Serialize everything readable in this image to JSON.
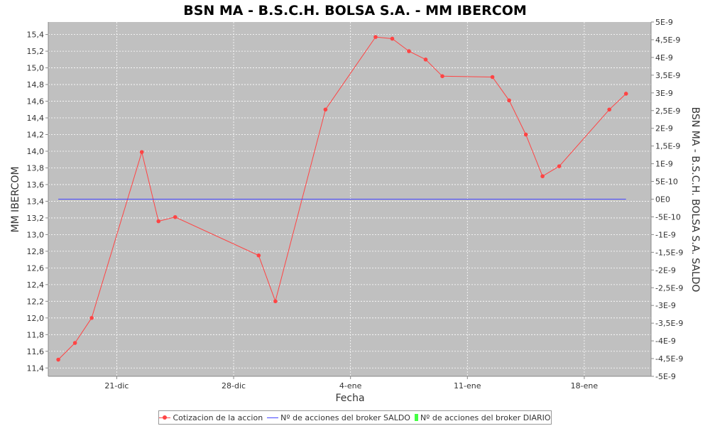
{
  "chart_data": {
    "type": "line",
    "title": "BSN MA - B.S.C.H. BOLSA S.A. - MM IBERCOM",
    "xlabel": "Fecha",
    "ylabel": "MM IBERCOM",
    "y2label": "BSN MA - B.S.C.H. BOLSA S.A. SALDO",
    "x_tick_labels": [
      "21-dic",
      "28-dic",
      "4-ene",
      "11-ene",
      "18-ene"
    ],
    "x_tick_days": [
      21,
      28,
      35,
      42,
      49
    ],
    "xlim_days": [
      16.9,
      53.0
    ],
    "ylim": [
      11.3,
      15.55
    ],
    "y_ticks": [
      "11,4",
      "11,6",
      "11,8",
      "12,0",
      "12,2",
      "12,4",
      "12,6",
      "12,8",
      "13,0",
      "13,2",
      "13,4",
      "13,6",
      "13,8",
      "14,0",
      "14,2",
      "14,4",
      "14,6",
      "14,8",
      "15,0",
      "15,2",
      "15,4"
    ],
    "y_tick_values": [
      11.4,
      11.6,
      11.8,
      12.0,
      12.2,
      12.4,
      12.6,
      12.8,
      13.0,
      13.2,
      13.4,
      13.6,
      13.8,
      14.0,
      14.2,
      14.4,
      14.6,
      14.8,
      15.0,
      15.2,
      15.4
    ],
    "y2lim": [
      -5e-09,
      5e-09
    ],
    "y2_ticks": [
      "5E-9",
      "4,5E-9",
      "4E-9",
      "3,5E-9",
      "3E-9",
      "2,5E-9",
      "2E-9",
      "1,5E-9",
      "1E-9",
      "5E-10",
      "0E0",
      "-5E-10",
      "-1E-9",
      "-1,5E-9",
      "-2E-9",
      "-2,5E-9",
      "-3E-9",
      "-3,5E-9",
      "-4E-9",
      "-4,5E-9",
      "-5E-9"
    ],
    "y2_tick_values": [
      5e-09,
      4.5e-09,
      4e-09,
      3.5e-09,
      3e-09,
      2.5e-09,
      2e-09,
      1.5e-09,
      1e-09,
      5e-10,
      0,
      -5e-10,
      -1e-09,
      -1.5e-09,
      -2e-09,
      -2.5e-09,
      -3e-09,
      -3.5e-09,
      -4e-09,
      -4.5e-09,
      -5e-09
    ],
    "grid": true,
    "legend_position": "bottom",
    "series": [
      {
        "name": "Cotizacion de la accion",
        "axis": "left",
        "color": "#ff4444",
        "x_days": [
          17.5,
          18.5,
          19.5,
          22.5,
          23.5,
          24.5,
          29.5,
          30.5,
          33.5,
          36.5,
          37.5,
          38.5,
          39.5,
          40.5,
          43.5,
          44.5,
          45.5,
          46.5,
          47.5,
          50.5,
          51.5
        ],
        "values": [
          11.5,
          11.7,
          12.0,
          13.99,
          13.16,
          13.21,
          12.75,
          12.2,
          14.5,
          15.37,
          15.35,
          15.2,
          15.1,
          14.9,
          14.89,
          14.61,
          14.2,
          13.7,
          13.82,
          14.5,
          14.69
        ]
      },
      {
        "name": "Nº de acciones del broker SALDO",
        "axis": "right",
        "color": "#4444ff",
        "x_days": [
          17.5,
          51.5
        ],
        "values": [
          0,
          0
        ]
      },
      {
        "name": "Nº de acciones del broker DIARIO",
        "axis": "right",
        "color": "#44ff44",
        "x_days": [],
        "values": []
      }
    ]
  }
}
